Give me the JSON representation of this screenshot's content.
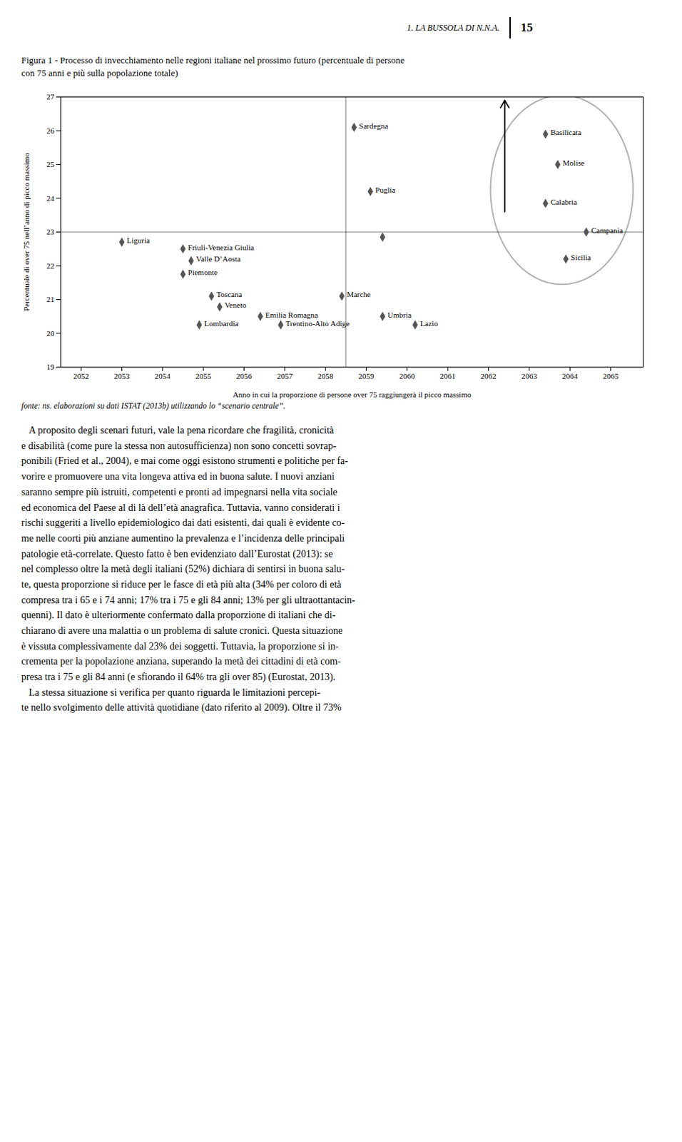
{
  "header": "1. LA BUSSOLA DI N.N.A.",
  "page": "15",
  "source": "fonte: ns. elaborazioni su dati ISTAT (2013b) utilizzando lo “scenario centrale”.",
  "body_text": "   A proposito degli scenari futuri, vale la pena ricordare che fragilità, cronicità\ne disabilità (come pure la stessa non autosufficienza) non sono concetti sovrap-\nponibili (Fried ​et al., 2004), e mai come oggi esistono strumenti e politiche per fa-\nvorire e promuovere una vita longeva attiva ed in buona salute. I nuovi anziani\nsaranno sempre più istruiti, competenti e pronti ad impegnarsi nella vita sociale\ned economica del Paese al di là dell’età anagrafica. Tuttavia, vanno considerati i\nrischi suggeriti a livello epidemiologico dai dati esistenti, dai quali è evidente co-\nme nelle coorti più anziane aumentino la prevalenza e l’incidenza delle principali\npatologie età-correlate. Questo fatto è ben evidenziato dall’Eurostat (2013): se\nnel complesso oltre la metà degli italiani (52%) dichiara di sentirsi in buona salu-\nte, questa proporzione si riduce per le fasce di età più alta (34% per coloro di età\ncompresa tra i 65 e i 74 anni; 17% tra i 75 e gli 84 anni; 13% per gli ultraottantacin-\nquenni). Il dato è ulteriormente confermato dalla proporzione di italiani che di-\nchiarano di avere una malattia o un problema di salute cronici. Questa situazione\nè vissuta complessivamente dal 23% dei soggetti. Tuttavia, la proporzione si in-\ncrementa per la popolazione anziana, superando la metà dei cittadini di età com-\npresa tra i 75 e gli 84 anni (e sfiorando il 64% tra gli over 85) (Eurostat, 2013).\n   La stessa situazione si verifica per quanto riguarda le limitazioni percepi-\nte nello svolgimento delle attività quotidiane (dato riferito al 2009). Oltre il 73%",
  "chart_data": {
    "type": "scatter",
    "title": "Figura 1 - Processo di invecchiamento nelle regioni italiane nel prossimo futuro (percentuale di persone\ncon 75 anni e più sulla popolazione totale)",
    "xlabel": "Anno in cui la proporzione di persone over 75 raggiungerà il picco massimo",
    "ylabel": "Percentuale di over 75 nell’anno di picco massimo",
    "xlim": [
      2051.5,
      2065.8
    ],
    "ylim": [
      19,
      27
    ],
    "xticks": [
      2052,
      2053,
      2054,
      2055,
      2056,
      2057,
      2058,
      2059,
      2060,
      2061,
      2062,
      2063,
      2064,
      2065
    ],
    "yticks": [
      19,
      20,
      21,
      22,
      23,
      24,
      25,
      26,
      27
    ],
    "grid": false,
    "color": "#555555",
    "marker": "diamond",
    "hline": 23,
    "vline": 2058.5,
    "ellipse": {
      "cx": 2063.8,
      "cy": 24.25,
      "width": 3.5,
      "height": 5.6
    },
    "arrow": {
      "x": 2062.4,
      "y0": 23.6,
      "y1": 26.9
    },
    "points": [
      {
        "name": "Liguria",
        "x": 2053.0,
        "y": 22.7
      },
      {
        "name": "Friuli-Venezia Giulia",
        "x": 2054.5,
        "y": 22.5
      },
      {
        "name": "Valle D’Aosta",
        "x": 2054.7,
        "y": 22.15
      },
      {
        "name": "Piemonte",
        "x": 2054.5,
        "y": 21.75
      },
      {
        "name": "Toscana",
        "x": 2055.2,
        "y": 21.1
      },
      {
        "name": "Veneto",
        "x": 2055.4,
        "y": 20.78
      },
      {
        "name": "Emilia Romagna",
        "x": 2056.4,
        "y": 20.5
      },
      {
        "name": "Lombardia",
        "x": 2054.9,
        "y": 20.25
      },
      {
        "name": "Trentino-Alto Adige",
        "x": 2056.9,
        "y": 20.25
      },
      {
        "name": "Sardegna",
        "x": 2058.7,
        "y": 26.1
      },
      {
        "name": "Marche",
        "x": 2058.4,
        "y": 21.1
      },
      {
        "name": "Umbria",
        "x": 2059.4,
        "y": 20.5
      },
      {
        "name": "Lazio",
        "x": 2060.2,
        "y": 20.25
      },
      {
        "name": "Puglia",
        "x": 2059.1,
        "y": 24.2
      },
      {
        "name": "Basilicata",
        "x": 2063.4,
        "y": 25.9
      },
      {
        "name": "Molise",
        "x": 2063.7,
        "y": 25.0
      },
      {
        "name": "Calabria",
        "x": 2063.4,
        "y": 23.85
      },
      {
        "name": "Campania",
        "x": 2064.4,
        "y": 23.0
      },
      {
        "name": "Sicilia",
        "x": 2063.9,
        "y": 22.2
      }
    ],
    "unlabeled_points": [
      {
        "x": 2059.4,
        "y": 22.85
      }
    ]
  }
}
